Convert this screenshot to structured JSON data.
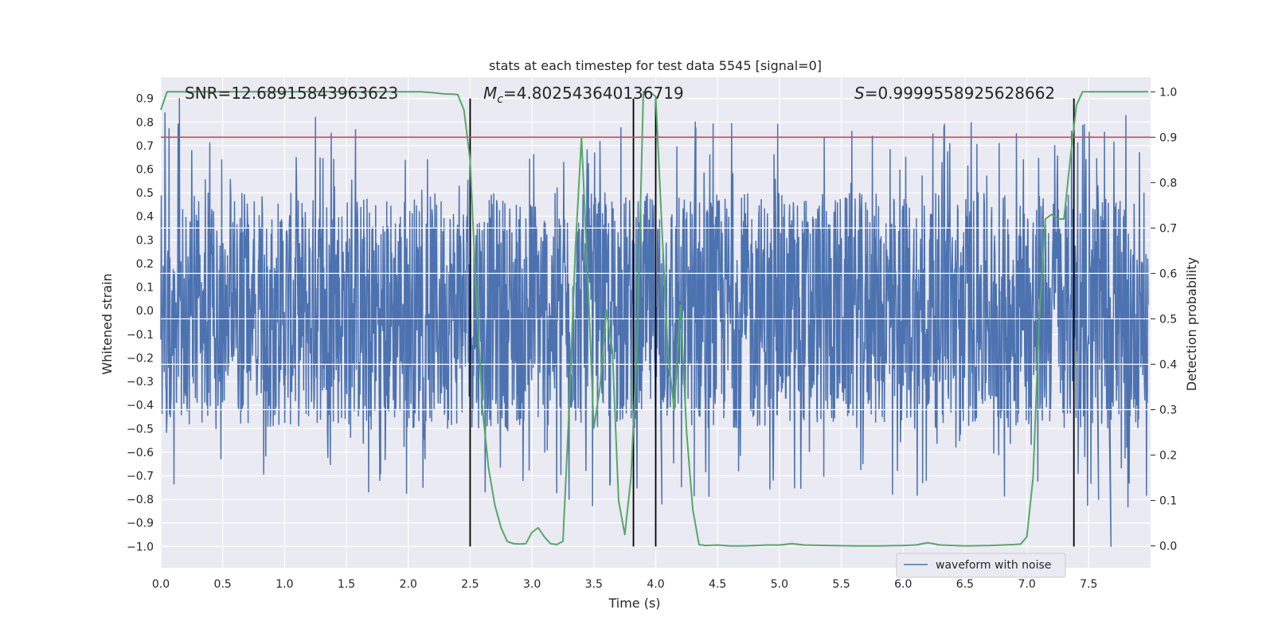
{
  "chart_data": {
    "type": "line",
    "title": "stats at each timestep for test data 5545 [signal=0]",
    "xlabel": "Time (s)",
    "ylabel_left": "Whitened strain",
    "ylabel_right": "Detection probability",
    "xlim": [
      0.0,
      8.0
    ],
    "ylim_left": [
      -1.09,
      0.99
    ],
    "ylim_right": [
      -0.048,
      1.032
    ],
    "x_ticks": [
      "0.0",
      "0.5",
      "1.0",
      "1.5",
      "2.0",
      "2.5",
      "3.0",
      "3.5",
      "4.0",
      "4.5",
      "5.0",
      "5.5",
      "6.0",
      "6.5",
      "7.0",
      "7.5"
    ],
    "y_left_ticks": [
      "0.9",
      "0.8",
      "0.7",
      "0.6",
      "0.5",
      "0.4",
      "0.3",
      "0.2",
      "0.1",
      "0.0",
      "−0.1",
      "−0.2",
      "−0.3",
      "−0.4",
      "−0.5",
      "−0.6",
      "−0.7",
      "−0.8",
      "−0.9",
      "−1.0"
    ],
    "y_right_ticks": [
      "1.0",
      "0.9",
      "0.8",
      "0.7",
      "0.6",
      "0.5",
      "0.4",
      "0.3",
      "0.2",
      "0.1",
      "0.0"
    ],
    "grid": true,
    "legend": {
      "location": "lower right",
      "entries": [
        "waveform with noise"
      ]
    },
    "annotations": {
      "snr": {
        "prefix": "SNR=",
        "value": "12.68915843963623"
      },
      "mc": {
        "symbol": "M",
        "sub": "c",
        "value": "=4.802543640136719"
      },
      "s": {
        "symbol": "S",
        "value": "=0.9999558925628662"
      }
    },
    "threshold_line": {
      "axis": "right",
      "value": 0.9
    },
    "vertical_lines": [
      2.5,
      3.82,
      4.0,
      7.38
    ],
    "detection_probability": {
      "name": "",
      "x": [
        0.0,
        0.05,
        0.1,
        0.2,
        0.4,
        0.6,
        0.8,
        1.0,
        1.2,
        1.4,
        1.6,
        1.8,
        2.0,
        2.1,
        2.2,
        2.3,
        2.35,
        2.4,
        2.45,
        2.5,
        2.55,
        2.6,
        2.65,
        2.7,
        2.75,
        2.8,
        2.85,
        2.9,
        2.95,
        3.0,
        3.05,
        3.1,
        3.15,
        3.2,
        3.25,
        3.3,
        3.35,
        3.4,
        3.45,
        3.5,
        3.55,
        3.6,
        3.65,
        3.7,
        3.75,
        3.8,
        3.85,
        3.9,
        3.95,
        4.0,
        4.05,
        4.1,
        4.15,
        4.2,
        4.25,
        4.3,
        4.35,
        4.4,
        4.5,
        4.6,
        4.7,
        4.8,
        4.9,
        5.0,
        5.1,
        5.2,
        5.4,
        5.6,
        5.8,
        6.0,
        6.1,
        6.2,
        6.3,
        6.5,
        6.7,
        6.9,
        6.95,
        7.0,
        7.05,
        7.1,
        7.15,
        7.2,
        7.25,
        7.3,
        7.35,
        7.4,
        7.45,
        7.5,
        7.6,
        7.7,
        7.8,
        7.9,
        7.98
      ],
      "y": [
        0.96,
        1.0,
        1.0,
        1.0,
        1.0,
        1.0,
        1.0,
        1.0,
        1.0,
        1.0,
        1.0,
        1.0,
        1.0,
        1.0,
        0.998,
        0.995,
        0.995,
        0.994,
        0.96,
        0.85,
        0.55,
        0.3,
        0.17,
        0.09,
        0.04,
        0.01,
        0.005,
        0.004,
        0.005,
        0.03,
        0.04,
        0.02,
        0.005,
        0.003,
        0.01,
        0.3,
        0.65,
        0.9,
        0.6,
        0.26,
        0.35,
        0.52,
        0.43,
        0.1,
        0.025,
        0.15,
        0.45,
        1.0,
        1.0,
        0.99,
        0.7,
        0.42,
        0.3,
        0.53,
        0.25,
        0.08,
        0.003,
        0.001,
        0.002,
        0.0,
        0.0,
        0.001,
        0.002,
        0.002,
        0.005,
        0.002,
        0.001,
        0.0,
        0.0,
        0.001,
        0.002,
        0.007,
        0.002,
        0.0,
        0.001,
        0.003,
        0.004,
        0.02,
        0.15,
        0.5,
        0.72,
        0.73,
        0.72,
        0.72,
        0.85,
        0.97,
        1.0,
        1.0,
        1.0,
        1.0,
        1.0,
        1.0,
        1.0
      ]
    },
    "waveform": {
      "name": "waveform with noise",
      "n_samples": 2400,
      "typical_amplitude": 0.5,
      "peak_max": 0.9,
      "peak_min": -1.0
    },
    "colors": {
      "background": "#eaeaf2",
      "grid": "#ffffff",
      "waveform": "#4c72b0",
      "probability": "#55a868",
      "threshold": "#c44e52",
      "vertical": "#000000"
    }
  }
}
